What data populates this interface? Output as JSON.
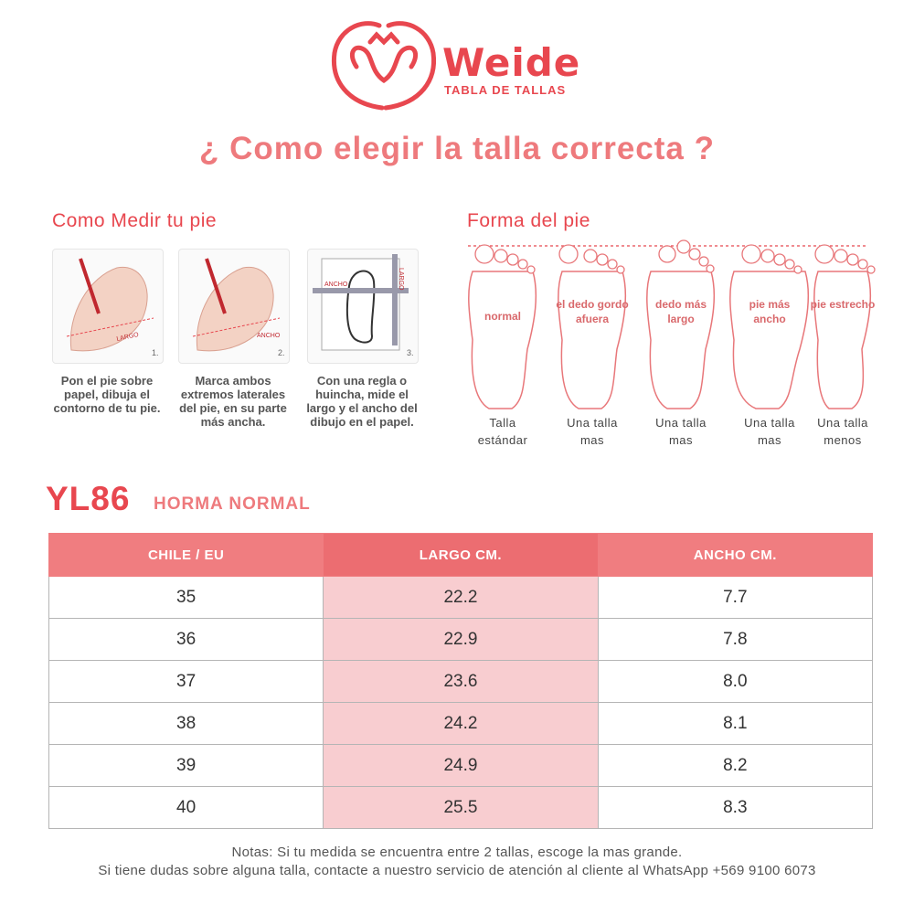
{
  "header": {
    "brand": "Weide",
    "subtitle": "TABLA DE TALLAS"
  },
  "title": "¿ Como elegir la talla correcta ?",
  "measure": {
    "heading": "Como Medir tu pie",
    "steps": [
      {
        "number": "1.",
        "labels": [
          "LARGO"
        ],
        "text": "Pon el pie sobre papel, dibuja el contorno de tu pie."
      },
      {
        "number": "2.",
        "labels": [
          "ANCHO"
        ],
        "text": "Marca ambos extremos laterales del pie, en su parte más ancha."
      },
      {
        "number": "3.",
        "labels": [
          "ANCHO",
          "LARGO"
        ],
        "text": "Con una regla o huincha, mide el largo y el ancho del dibujo en el papel."
      }
    ]
  },
  "shapes": {
    "heading": "Forma del pie",
    "items": [
      {
        "label": "normal",
        "result": "Talla estándar"
      },
      {
        "label": "el dedo gordo afuera",
        "result": "Una talla mas"
      },
      {
        "label": "dedo más largo",
        "result": "Una talla mas"
      },
      {
        "label": "pie más ancho",
        "result": "Una talla mas"
      },
      {
        "label": "pie estrecho",
        "result": "Una talla menos"
      }
    ]
  },
  "model": {
    "code": "YL86",
    "name": "HORMA NORMAL"
  },
  "table": {
    "columns": [
      "CHILE / EU",
      "LARGO CM.",
      "ANCHO CM."
    ],
    "rows": [
      [
        "35",
        "22.2",
        "7.7"
      ],
      [
        "36",
        "22.9",
        "7.8"
      ],
      [
        "37",
        "23.6",
        "8.0"
      ],
      [
        "38",
        "24.2",
        "8.1"
      ],
      [
        "39",
        "24.9",
        "8.2"
      ],
      [
        "40",
        "25.5",
        "8.3"
      ]
    ]
  },
  "notes": [
    "Notas: Si tu medida se encuentra entre 2 tallas, escoge la mas grande.",
    "Si tiene dudas sobre alguna talla, contacte a nuestro servicio de atención al cliente al WhatsApp +569 9100 6073"
  ]
}
